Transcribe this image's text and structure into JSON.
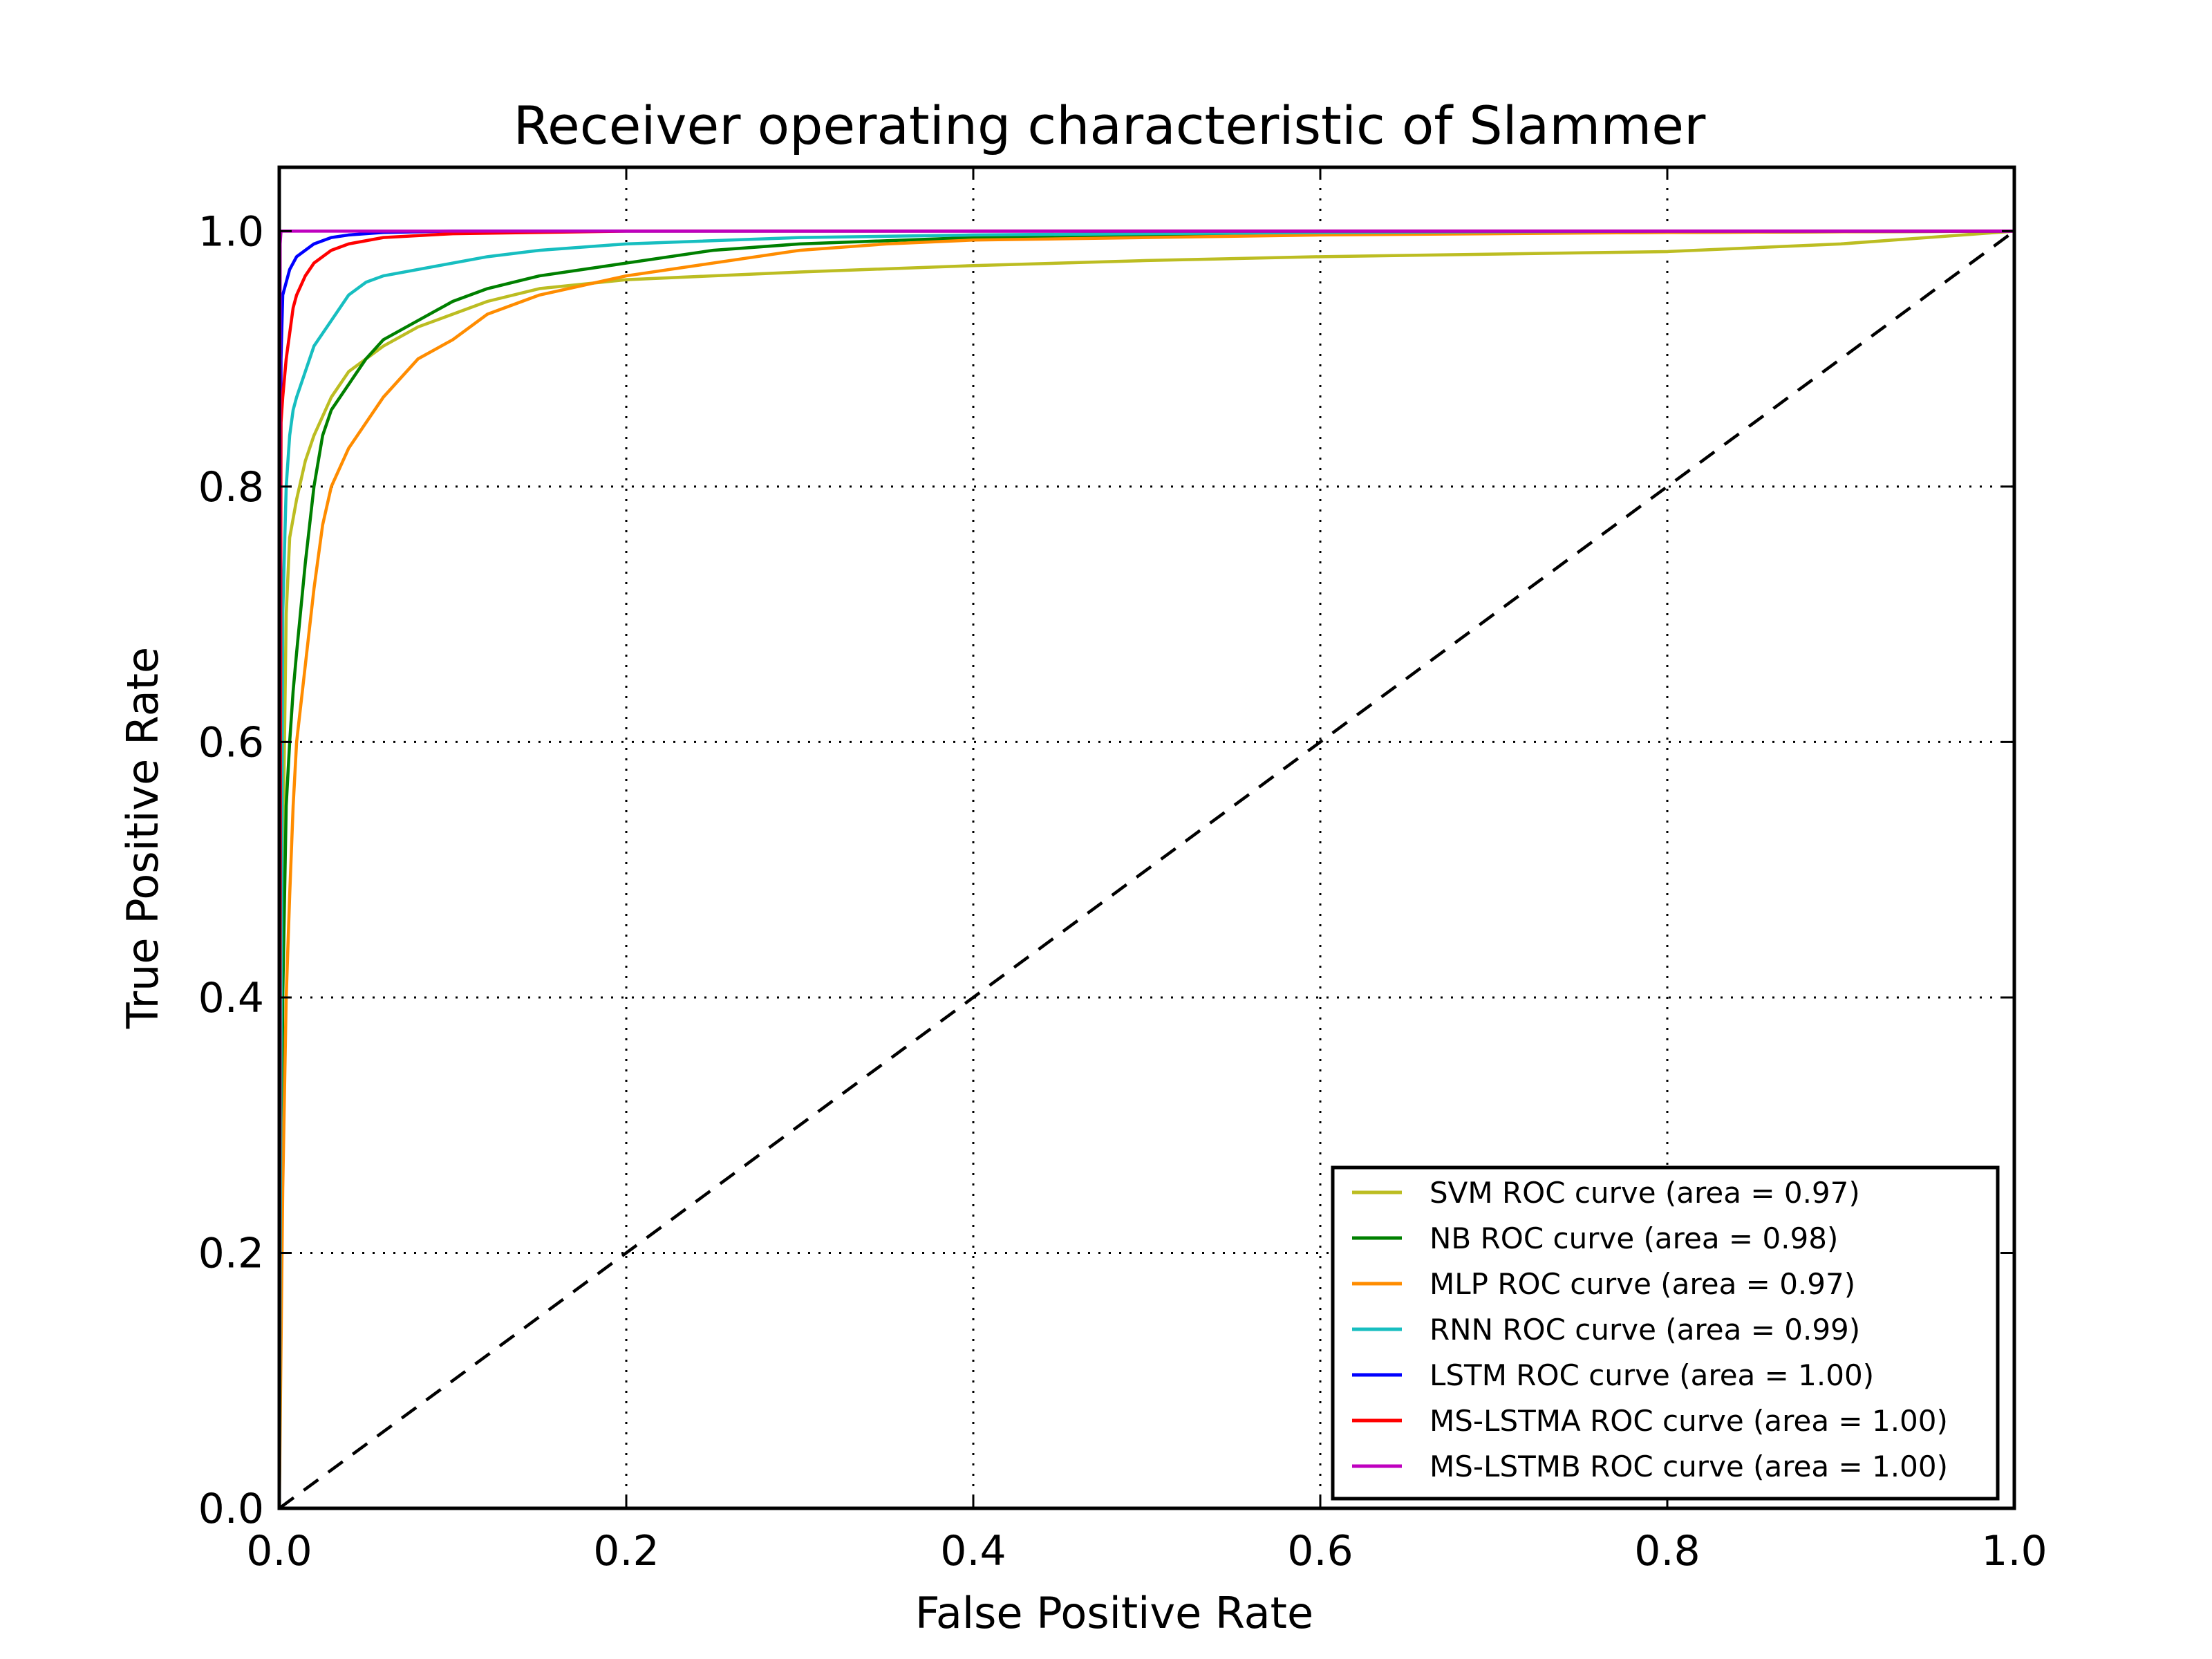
{
  "chart_data": {
    "type": "line",
    "title": "Receiver operating characteristic of Slammer",
    "xlabel": "False Positive Rate",
    "ylabel": "True Positive Rate",
    "xlim": [
      0,
      1
    ],
    "ylim": [
      0,
      1.05
    ],
    "xticks": [
      0.0,
      0.2,
      0.4,
      0.6,
      0.8,
      1.0
    ],
    "yticks": [
      0.0,
      0.2,
      0.4,
      0.6,
      0.8,
      1.0
    ],
    "xtick_labels": [
      "0.0",
      "0.2",
      "0.4",
      "0.6",
      "0.8",
      "1.0"
    ],
    "ytick_labels": [
      "0.0",
      "0.2",
      "0.4",
      "0.6",
      "0.8",
      "1.0"
    ],
    "grid": true,
    "legend_position": "bottom-right",
    "reference_line": {
      "style": "dashed",
      "color": "#000000",
      "x": [
        0,
        1
      ],
      "y": [
        0,
        1
      ]
    },
    "series": [
      {
        "name": "SVM ROC curve (area = 0.97)",
        "color": "#bcbd22",
        "x": [
          0,
          0.002,
          0.004,
          0.006,
          0.01,
          0.015,
          0.02,
          0.03,
          0.04,
          0.05,
          0.06,
          0.08,
          0.1,
          0.12,
          0.15,
          0.2,
          0.3,
          0.4,
          0.5,
          0.6,
          0.7,
          0.8,
          0.9,
          0.95,
          1.0
        ],
        "y": [
          0,
          0.5,
          0.7,
          0.76,
          0.79,
          0.82,
          0.84,
          0.87,
          0.89,
          0.9,
          0.91,
          0.925,
          0.935,
          0.945,
          0.955,
          0.962,
          0.968,
          0.973,
          0.977,
          0.98,
          0.982,
          0.984,
          0.99,
          0.995,
          1.0
        ]
      },
      {
        "name": "NB ROC curve (area = 0.98)",
        "color": "#008000",
        "x": [
          0,
          0.002,
          0.004,
          0.006,
          0.008,
          0.01,
          0.015,
          0.02,
          0.025,
          0.03,
          0.04,
          0.05,
          0.06,
          0.08,
          0.1,
          0.12,
          0.15,
          0.2,
          0.25,
          0.3,
          0.4,
          0.5,
          0.6,
          0.8,
          1.0
        ],
        "y": [
          0,
          0.4,
          0.55,
          0.6,
          0.64,
          0.67,
          0.74,
          0.8,
          0.84,
          0.86,
          0.88,
          0.9,
          0.915,
          0.93,
          0.945,
          0.955,
          0.965,
          0.975,
          0.985,
          0.99,
          0.995,
          0.997,
          0.998,
          0.999,
          1.0
        ]
      },
      {
        "name": "MLP ROC curve (area = 0.97)",
        "color": "#ff8c00",
        "x": [
          0,
          0.002,
          0.004,
          0.006,
          0.008,
          0.01,
          0.015,
          0.02,
          0.025,
          0.03,
          0.04,
          0.05,
          0.06,
          0.08,
          0.1,
          0.12,
          0.15,
          0.2,
          0.25,
          0.3,
          0.35,
          0.4,
          0.5,
          0.6,
          0.8,
          1.0
        ],
        "y": [
          0,
          0.25,
          0.4,
          0.48,
          0.55,
          0.6,
          0.66,
          0.72,
          0.77,
          0.8,
          0.83,
          0.85,
          0.87,
          0.9,
          0.915,
          0.935,
          0.95,
          0.965,
          0.975,
          0.985,
          0.99,
          0.993,
          0.995,
          0.997,
          0.999,
          1.0
        ]
      },
      {
        "name": "RNN ROC curve (area = 0.99)",
        "color": "#17bec0",
        "x": [
          0,
          0.002,
          0.004,
          0.006,
          0.008,
          0.01,
          0.015,
          0.02,
          0.03,
          0.04,
          0.05,
          0.06,
          0.08,
          0.1,
          0.12,
          0.15,
          0.2,
          0.3,
          0.4,
          0.6,
          0.8,
          1.0
        ],
        "y": [
          0,
          0.7,
          0.8,
          0.84,
          0.86,
          0.87,
          0.89,
          0.91,
          0.93,
          0.95,
          0.96,
          0.965,
          0.97,
          0.975,
          0.98,
          0.985,
          0.99,
          0.995,
          0.997,
          0.999,
          1.0,
          1.0
        ]
      },
      {
        "name": "LSTM ROC curve (area = 1.00)",
        "color": "#0000ff",
        "x": [
          0,
          0.001,
          0.002,
          0.004,
          0.006,
          0.008,
          0.01,
          0.015,
          0.02,
          0.03,
          0.04,
          0.06,
          0.1,
          0.2,
          0.5,
          1.0
        ],
        "y": [
          0,
          0.9,
          0.95,
          0.96,
          0.97,
          0.975,
          0.98,
          0.985,
          0.99,
          0.995,
          0.997,
          0.999,
          1.0,
          1.0,
          1.0,
          1.0
        ]
      },
      {
        "name": "MS-LSTMA ROC curve (area = 1.00)",
        "color": "#ff0000",
        "x": [
          0,
          0.001,
          0.002,
          0.004,
          0.006,
          0.008,
          0.01,
          0.015,
          0.02,
          0.025,
          0.03,
          0.04,
          0.06,
          0.1,
          0.2,
          0.5,
          1.0
        ],
        "y": [
          0,
          0.85,
          0.87,
          0.9,
          0.92,
          0.94,
          0.95,
          0.965,
          0.975,
          0.98,
          0.985,
          0.99,
          0.995,
          0.998,
          1.0,
          1.0,
          1.0
        ]
      },
      {
        "name": "MS-LSTMB ROC curve (area = 1.00)",
        "color": "#bf00bf",
        "x": [
          0,
          0.0005,
          0.001,
          0.5,
          1.0
        ],
        "y": [
          0,
          0.99,
          1.0,
          1.0,
          1.0
        ]
      }
    ]
  }
}
